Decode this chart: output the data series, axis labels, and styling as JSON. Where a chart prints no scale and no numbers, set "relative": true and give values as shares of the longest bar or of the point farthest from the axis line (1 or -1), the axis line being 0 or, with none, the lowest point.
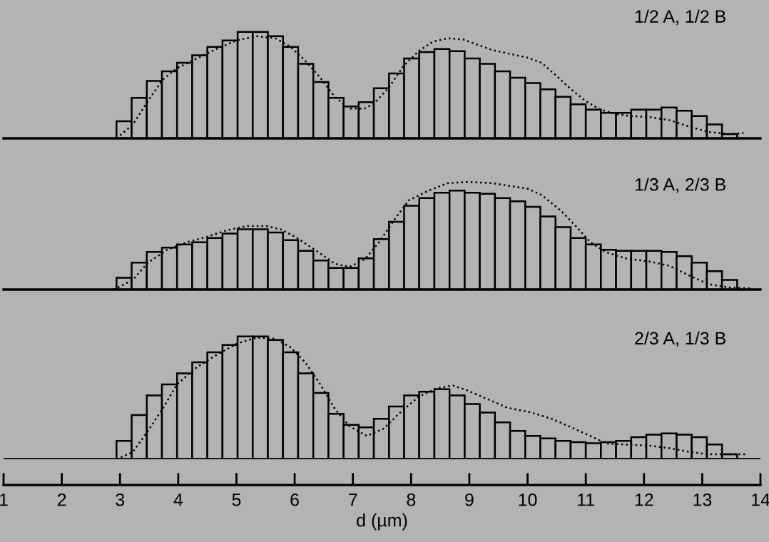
{
  "chart_data": [
    {
      "type": "histogram",
      "relative": true,
      "xlim": [
        1,
        14
      ],
      "tick_labels": false,
      "annotations": [
        "1/2 A, 1/2 B"
      ],
      "bins": [
        2.94,
        3.2,
        3.46,
        3.72,
        3.98,
        4.24,
        4.5,
        4.76,
        5.02,
        5.28,
        5.54,
        5.8,
        6.06,
        6.32,
        6.58,
        6.84,
        7.1,
        7.36,
        7.62,
        7.88,
        8.14,
        8.4,
        8.66,
        8.92,
        9.18,
        9.44,
        9.7,
        9.96,
        10.22,
        10.48,
        10.74,
        11.0,
        11.26,
        11.52,
        11.78,
        12.04,
        12.3,
        12.56,
        12.82,
        13.08,
        13.34,
        13.6
      ],
      "series": [
        {
          "color": "#b3b3b3",
          "values": [
            0.16,
            0.38,
            0.54,
            0.63,
            0.71,
            0.78,
            0.86,
            0.92,
            1,
            1,
            0.96,
            0.86,
            0.7,
            0.53,
            0.38,
            0.3,
            0.34,
            0.47,
            0.61,
            0.75,
            0.81,
            0.84,
            0.82,
            0.75,
            0.7,
            0.63,
            0.57,
            0.52,
            0.46,
            0.39,
            0.32,
            0.27,
            0.24,
            0.24,
            0.27,
            0.27,
            0.29,
            0.26,
            0.21,
            0.13,
            0.04
          ]
        },
        {
          "type": "line",
          "color": "#000000",
          "line_style": "dotted",
          "x": [
            2.94,
            3.22,
            3.48,
            3.73,
            3.98,
            4.32,
            4.66,
            5.0,
            5.34,
            5.67,
            5.93,
            6.18,
            6.44,
            6.69,
            6.94,
            7.2,
            7.37,
            7.62,
            7.87,
            8.13,
            8.38,
            8.63,
            8.89,
            9.14,
            9.39,
            9.73,
            9.99,
            10.24,
            10.49,
            10.75,
            11.0,
            11.25,
            11.51,
            11.76,
            12.1,
            12.44,
            12.78,
            13.11,
            13.45,
            13.71
          ],
          "values": [
            0,
            0.13,
            0.35,
            0.55,
            0.66,
            0.75,
            0.84,
            0.92,
            0.96,
            0.94,
            0.86,
            0.73,
            0.57,
            0.39,
            0.28,
            0.28,
            0.33,
            0.48,
            0.68,
            0.82,
            0.91,
            0.94,
            0.93,
            0.88,
            0.83,
            0.79,
            0.76,
            0.71,
            0.59,
            0.46,
            0.35,
            0.27,
            0.23,
            0.21,
            0.2,
            0.17,
            0.11,
            0.06,
            0.04,
            0.05
          ]
        }
      ]
    },
    {
      "type": "histogram",
      "relative": true,
      "xlim": [
        1,
        14
      ],
      "tick_labels": false,
      "annotations": [
        "1/3 A, 2/3 B"
      ],
      "bins": [
        2.94,
        3.2,
        3.46,
        3.72,
        3.98,
        4.24,
        4.5,
        4.76,
        5.02,
        5.28,
        5.54,
        5.8,
        6.06,
        6.32,
        6.58,
        6.84,
        7.1,
        7.36,
        7.62,
        7.88,
        8.14,
        8.4,
        8.66,
        8.92,
        9.18,
        9.44,
        9.7,
        9.96,
        10.22,
        10.48,
        10.74,
        11.0,
        11.26,
        11.52,
        11.78,
        12.04,
        12.3,
        12.56,
        12.82,
        13.08,
        13.34,
        13.6
      ],
      "series": [
        {
          "color": "#b3b3b3",
          "values": [
            0.11,
            0.25,
            0.35,
            0.39,
            0.42,
            0.44,
            0.48,
            0.52,
            0.56,
            0.56,
            0.53,
            0.46,
            0.36,
            0.27,
            0.2,
            0.2,
            0.29,
            0.47,
            0.63,
            0.78,
            0.85,
            0.9,
            0.92,
            0.9,
            0.89,
            0.85,
            0.82,
            0.77,
            0.68,
            0.58,
            0.48,
            0.42,
            0.37,
            0.36,
            0.36,
            0.36,
            0.35,
            0.31,
            0.25,
            0.17,
            0.09
          ]
        },
        {
          "type": "line",
          "color": "#000000",
          "line_style": "dotted",
          "x": [
            2.89,
            3.22,
            3.48,
            3.81,
            4.15,
            4.49,
            4.83,
            5.17,
            5.51,
            5.76,
            6.01,
            6.35,
            6.69,
            6.94,
            7.2,
            7.45,
            7.7,
            7.96,
            8.3,
            8.63,
            8.97,
            9.39,
            9.73,
            9.99,
            10.24,
            10.58,
            10.83,
            11.08,
            11.34,
            11.68,
            12.1,
            12.44,
            12.78,
            13.11,
            13.45,
            13.87
          ],
          "values": [
            0,
            0.09,
            0.25,
            0.37,
            0.44,
            0.49,
            0.55,
            0.59,
            0.59,
            0.56,
            0.49,
            0.37,
            0.24,
            0.21,
            0.28,
            0.44,
            0.64,
            0.83,
            0.92,
            0.99,
            1,
            0.99,
            0.96,
            0.94,
            0.88,
            0.73,
            0.59,
            0.44,
            0.35,
            0.29,
            0.26,
            0.22,
            0.13,
            0.05,
            0.02,
            0.01
          ]
        }
      ]
    },
    {
      "type": "histogram",
      "relative": true,
      "xlim": [
        1,
        14
      ],
      "xticks": [
        1,
        2,
        3,
        4,
        5,
        6,
        7,
        8,
        9,
        10,
        11,
        12,
        13,
        14
      ],
      "xlabel": "d (µm)",
      "tick_labels": "x",
      "annotations": [
        "2/3 A, 1/3 B"
      ],
      "bins": [
        2.94,
        3.2,
        3.46,
        3.72,
        3.98,
        4.24,
        4.5,
        4.76,
        5.02,
        5.28,
        5.54,
        5.8,
        6.06,
        6.32,
        6.58,
        6.84,
        7.1,
        7.36,
        7.62,
        7.88,
        8.14,
        8.4,
        8.66,
        8.92,
        9.18,
        9.44,
        9.7,
        9.96,
        10.22,
        10.48,
        10.74,
        11.0,
        11.26,
        11.52,
        11.78,
        12.04,
        12.3,
        12.56,
        12.82,
        13.08,
        13.34,
        13.6
      ],
      "series": [
        {
          "color": "#b3b3b3",
          "values": [
            0.15,
            0.36,
            0.52,
            0.61,
            0.7,
            0.79,
            0.87,
            0.93,
            1,
            1,
            0.97,
            0.87,
            0.7,
            0.54,
            0.37,
            0.28,
            0.26,
            0.33,
            0.43,
            0.52,
            0.55,
            0.57,
            0.52,
            0.45,
            0.38,
            0.3,
            0.23,
            0.19,
            0.17,
            0.15,
            0.14,
            0.13,
            0.14,
            0.15,
            0.18,
            0.2,
            0.21,
            0.2,
            0.18,
            0.12,
            0.04
          ]
        },
        {
          "type": "line",
          "color": "#000000",
          "line_style": "dotted",
          "x": [
            2.94,
            3.22,
            3.48,
            3.73,
            3.98,
            4.32,
            4.66,
            5.0,
            5.34,
            5.67,
            5.93,
            6.18,
            6.44,
            6.69,
            6.94,
            7.24,
            7.53,
            7.79,
            8.13,
            8.46,
            8.72,
            8.97,
            9.31,
            9.65,
            10.07,
            10.41,
            10.75,
            11.08,
            11.34,
            11.68,
            12.1,
            12.44,
            12.78,
            13.11,
            13.45,
            13.79
          ],
          "values": [
            0,
            0.06,
            0.23,
            0.41,
            0.61,
            0.75,
            0.85,
            0.94,
            0.99,
            0.98,
            0.91,
            0.79,
            0.61,
            0.41,
            0.27,
            0.19,
            0.25,
            0.37,
            0.51,
            0.58,
            0.6,
            0.56,
            0.49,
            0.42,
            0.38,
            0.33,
            0.26,
            0.19,
            0.13,
            0.12,
            0.11,
            0.09,
            0.06,
            0.04,
            0.04,
            0.04
          ]
        }
      ]
    }
  ]
}
